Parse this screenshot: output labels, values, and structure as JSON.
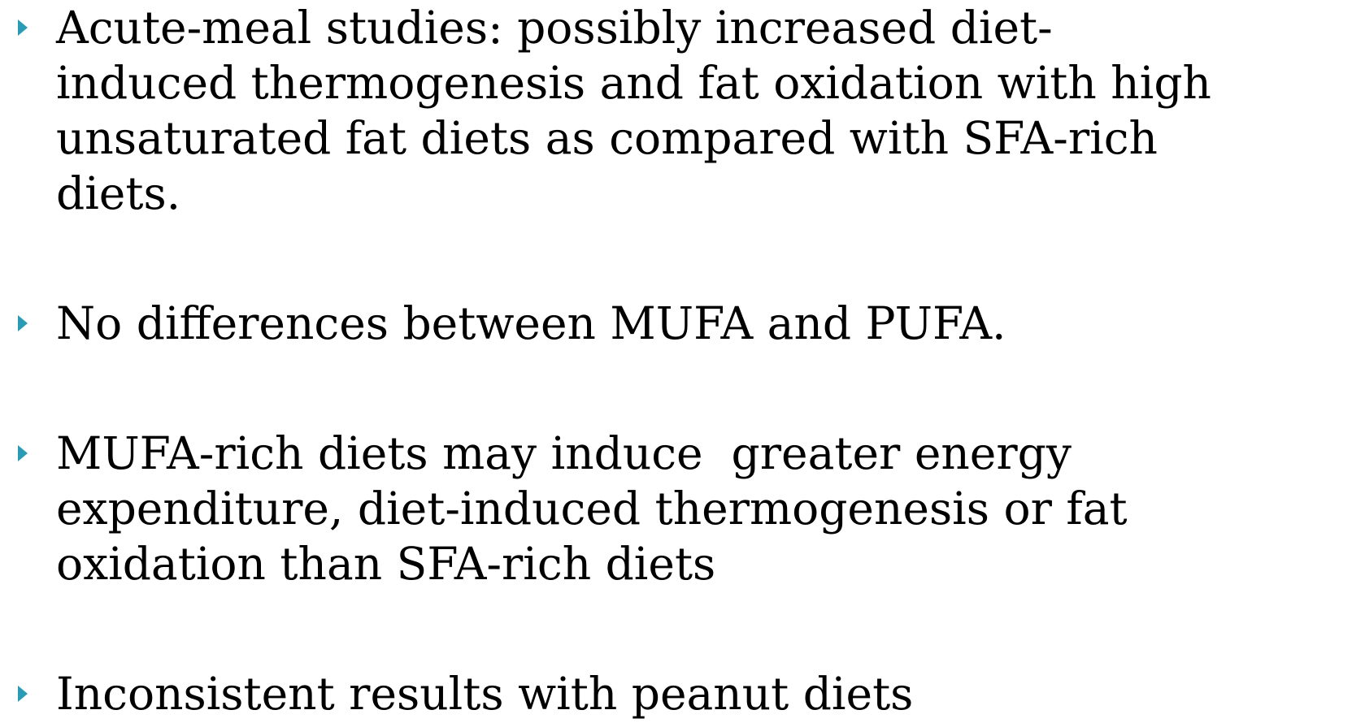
{
  "bullets": [
    "Acute-meal studies: possibly increased diet-\ninduced thermogenesis and fat oxidation with high\nunsaturated fat diets as compared with SFA-rich\ndiets.",
    "No differences between MUFA and PUFA.",
    "MUFA-rich diets may induce  greater energy\nexpenditure, diet-induced thermogenesis or fat\noxidation than SFA-rich diets",
    "Inconsistent results with peanut diets"
  ]
}
